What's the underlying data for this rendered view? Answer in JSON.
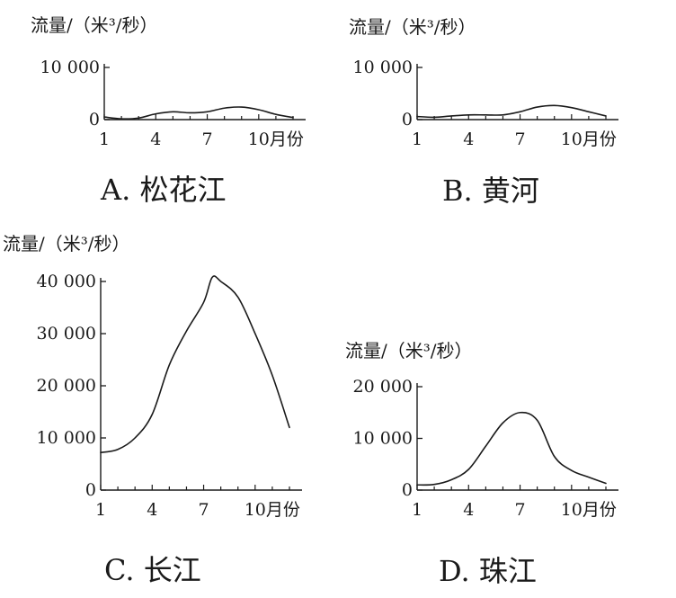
{
  "chart_data": [
    {
      "type": "line",
      "caption": "A. 松花江",
      "ylabel": "流量/（米³/秒）",
      "xlabel": "月份",
      "x_ticks": [
        1,
        4,
        7,
        10
      ],
      "x_range": [
        1,
        12
      ],
      "y_ticks": [
        0,
        10000
      ],
      "y_range": [
        0,
        10000
      ],
      "grid": false,
      "series": [
        {
          "x": [
            1,
            2,
            3,
            4,
            5,
            6,
            7,
            8,
            9,
            10,
            11,
            12
          ],
          "y": [
            500,
            150,
            300,
            1100,
            1500,
            1300,
            1500,
            2200,
            2400,
            1900,
            1000,
            400
          ]
        }
      ]
    },
    {
      "type": "line",
      "caption": "B. 黄河",
      "ylabel": "流量/（米³/秒）",
      "xlabel": "月份",
      "x_ticks": [
        1,
        4,
        7,
        10
      ],
      "x_range": [
        1,
        12
      ],
      "y_ticks": [
        0,
        10000
      ],
      "y_range": [
        0,
        10000
      ],
      "grid": false,
      "series": [
        {
          "x": [
            1,
            2,
            3,
            4,
            5,
            6,
            7,
            8,
            9,
            10,
            11,
            12
          ],
          "y": [
            600,
            450,
            700,
            900,
            900,
            900,
            1500,
            2400,
            2700,
            2300,
            1500,
            700
          ]
        }
      ]
    },
    {
      "type": "line",
      "caption": "C. 长江",
      "ylabel": "流量/（米³/秒）",
      "xlabel": "月份",
      "x_ticks": [
        1,
        4,
        7,
        10
      ],
      "x_range": [
        1,
        12
      ],
      "y_ticks": [
        0,
        10000,
        20000,
        30000,
        40000
      ],
      "y_range": [
        0,
        40000
      ],
      "grid": false,
      "series": [
        {
          "x": [
            1,
            2,
            3,
            4,
            5,
            6,
            7,
            7.5,
            8,
            9,
            10,
            11,
            12
          ],
          "y": [
            7200,
            7800,
            10000,
            14500,
            24000,
            30500,
            36000,
            40800,
            40000,
            37000,
            30000,
            22000,
            12000
          ]
        }
      ]
    },
    {
      "type": "line",
      "caption": "D. 珠江",
      "ylabel": "流量/（米³/秒）",
      "xlabel": "月份",
      "x_ticks": [
        1,
        4,
        7,
        10
      ],
      "x_range": [
        1,
        12
      ],
      "y_ticks": [
        0,
        10000,
        20000
      ],
      "y_range": [
        0,
        20000
      ],
      "grid": false,
      "series": [
        {
          "x": [
            1,
            2,
            3,
            4,
            5,
            6,
            7,
            8,
            9,
            10,
            11,
            12
          ],
          "y": [
            1000,
            1100,
            2000,
            4000,
            8500,
            13000,
            15000,
            13500,
            6500,
            3800,
            2500,
            1300
          ]
        }
      ]
    }
  ]
}
